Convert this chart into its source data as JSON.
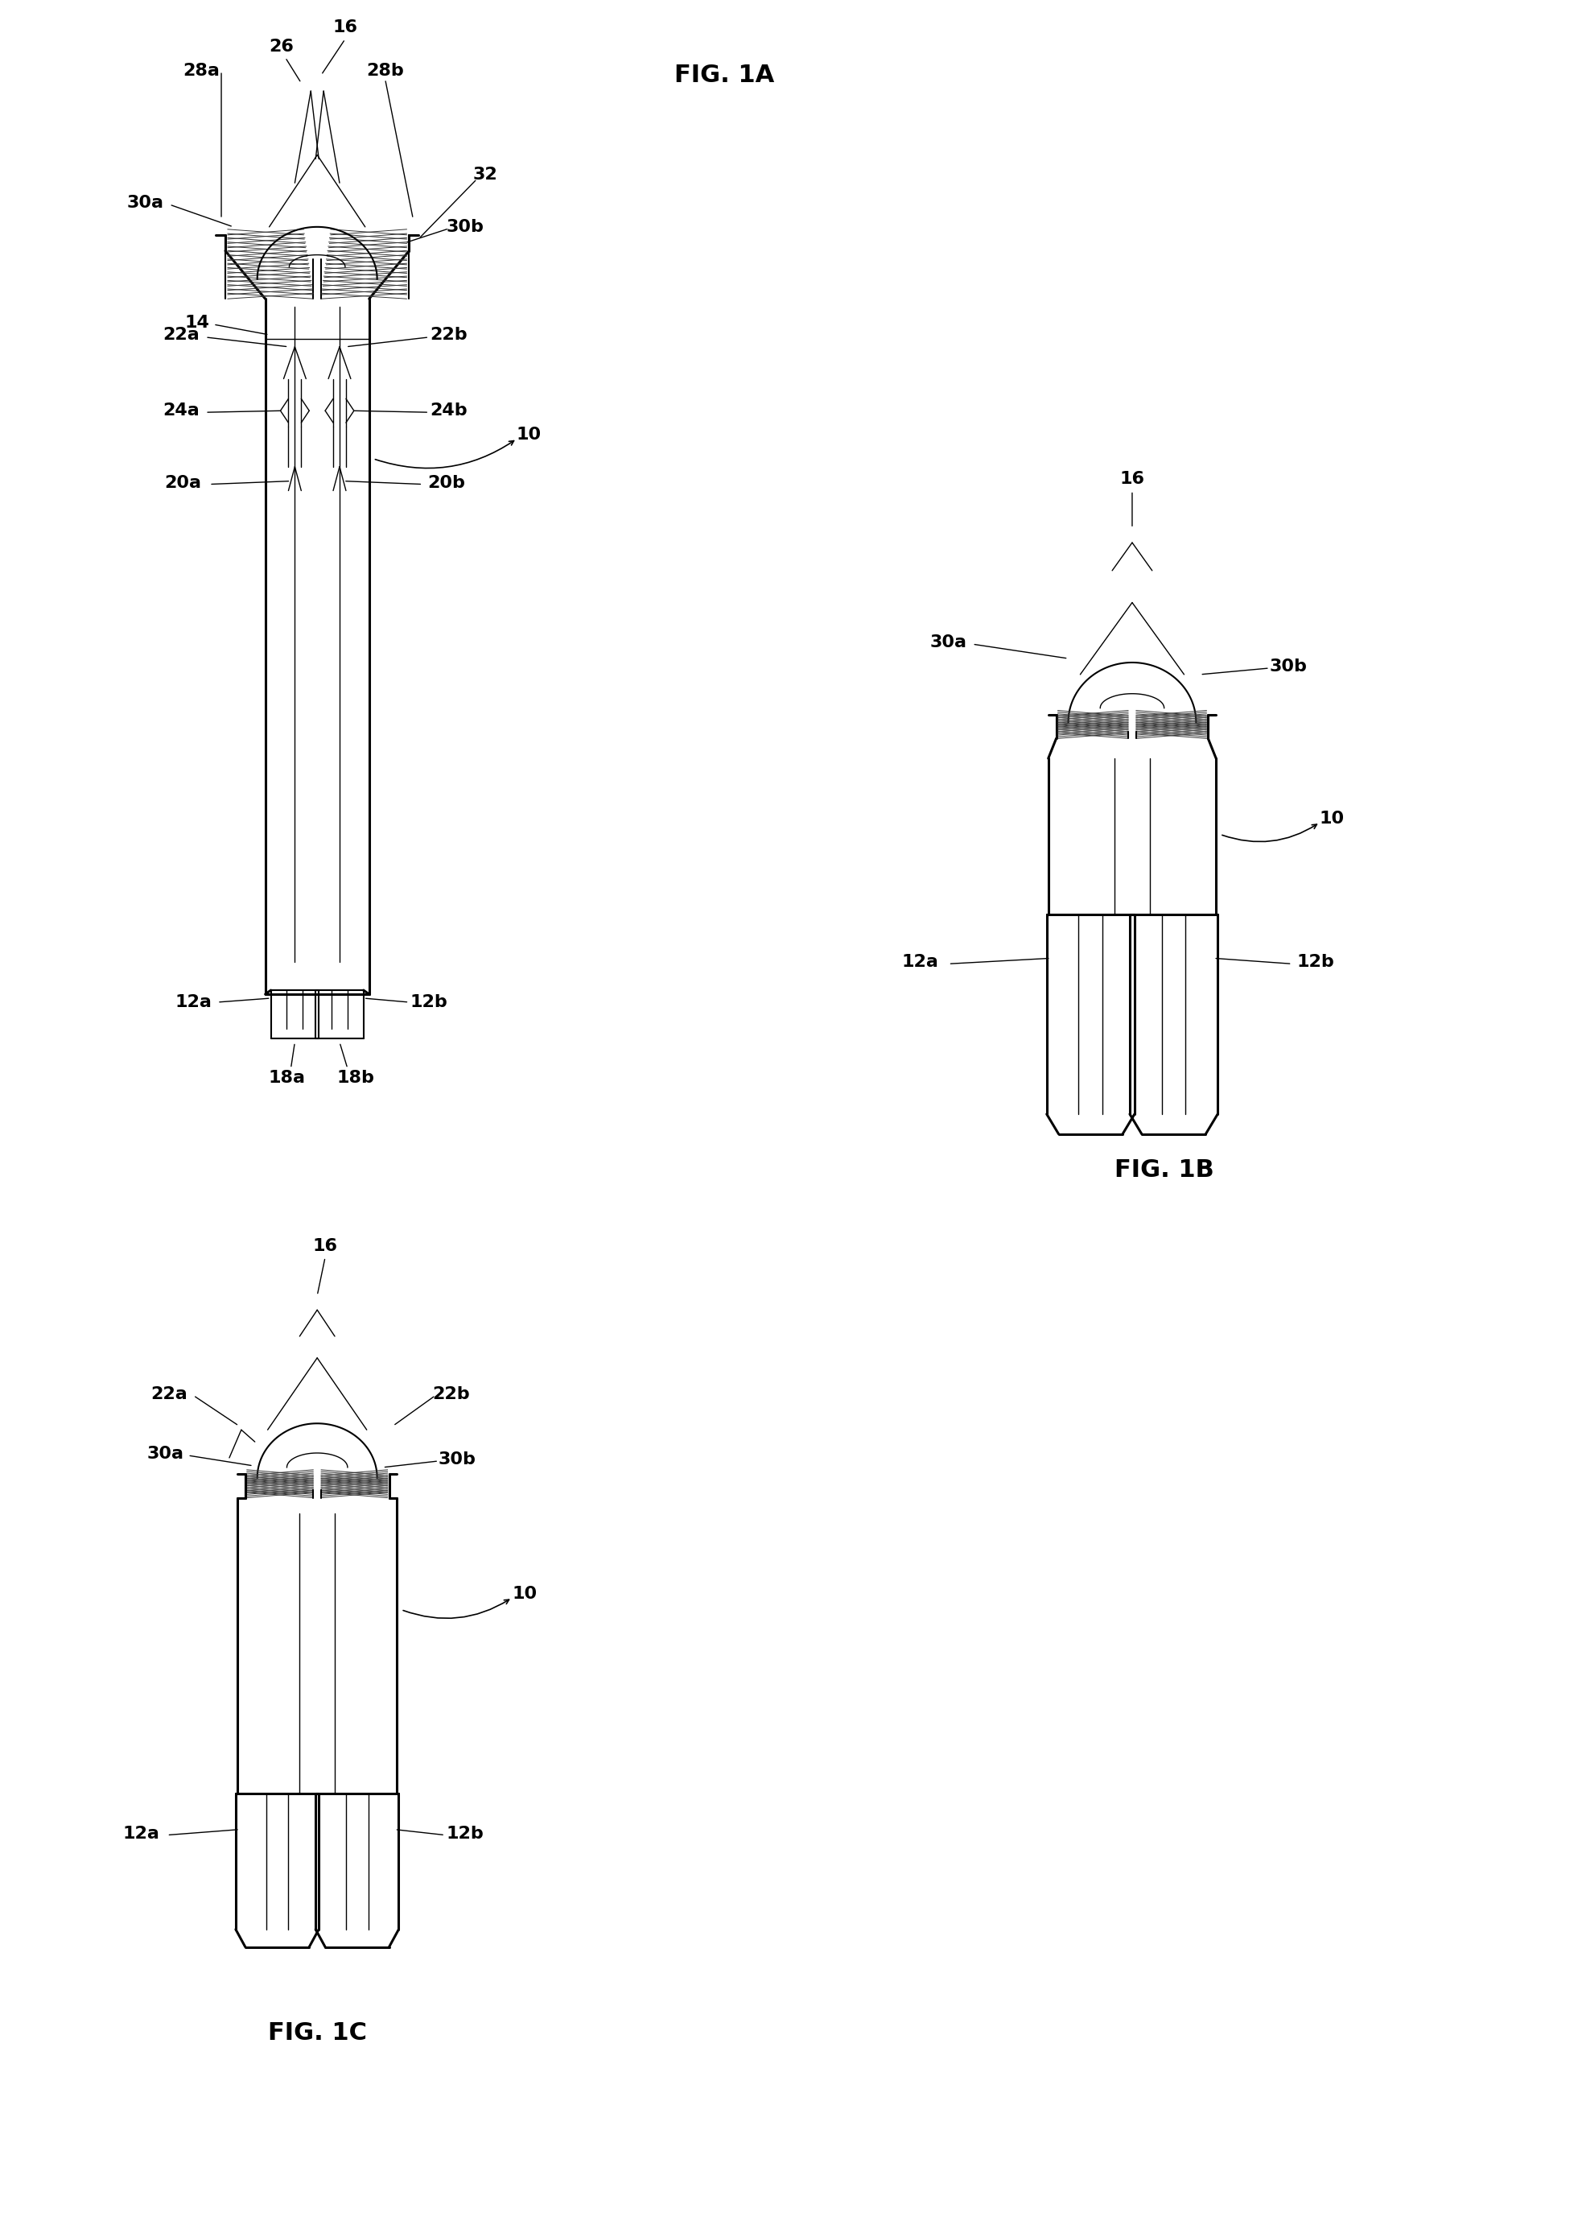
{
  "bg_color": "#ffffff",
  "fig_width": 19.61,
  "fig_height": 27.64,
  "fig1a_label": "FIG. 1A",
  "fig1b_label": "FIG. 1B",
  "fig1c_label": "FIG. 1C"
}
